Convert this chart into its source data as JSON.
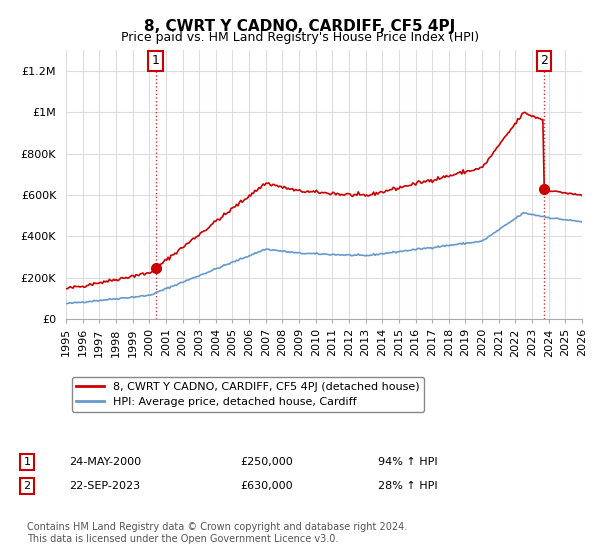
{
  "title": "8, CWRT Y CADNO, CARDIFF, CF5 4PJ",
  "subtitle": "Price paid vs. HM Land Registry's House Price Index (HPI)",
  "ylim": [
    0,
    1300000
  ],
  "yticks": [
    0,
    200000,
    400000,
    600000,
    800000,
    1000000,
    1200000
  ],
  "ytick_labels": [
    "£0",
    "£200K",
    "£400K",
    "£600K",
    "£800K",
    "£1M",
    "£1.2M"
  ],
  "sale1_date": 2000.38,
  "sale1_price": 250000,
  "sale2_date": 2023.72,
  "sale2_price": 630000,
  "red_line_color": "#cc0000",
  "blue_line_color": "#6699cc",
  "marker_color": "#cc0000",
  "grid_color": "#dddddd",
  "background_color": "#ffffff",
  "legend_label_red": "8, CWRT Y CADNO, CARDIFF, CF5 4PJ (detached house)",
  "legend_label_blue": "HPI: Average price, detached house, Cardiff",
  "sale1_annotation": "24-MAY-2000",
  "sale1_price_str": "£250,000",
  "sale1_hpi": "94% ↑ HPI",
  "sale2_annotation": "22-SEP-2023",
  "sale2_price_str": "£630,000",
  "sale2_hpi": "28% ↑ HPI",
  "footnote": "Contains HM Land Registry data © Crown copyright and database right 2024.\nThis data is licensed under the Open Government Licence v3.0.",
  "title_fontsize": 11,
  "subtitle_fontsize": 9,
  "tick_fontsize": 8,
  "xstart": 1995,
  "xend": 2026
}
